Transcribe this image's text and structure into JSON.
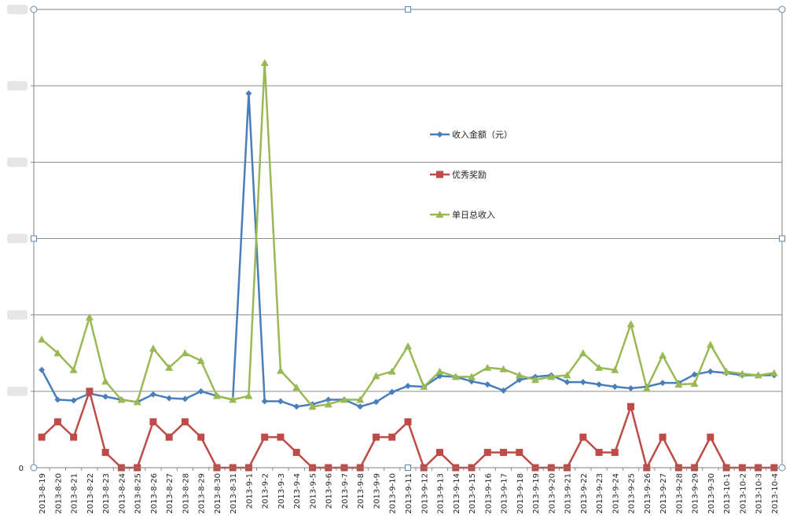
{
  "chart_data": {
    "type": "line",
    "title": "",
    "xlabel": "",
    "ylabel": "",
    "ylim": [
      0,
      60
    ],
    "y_tick_labels": [
      "0",
      "",
      "",
      "",
      "",
      "",
      ""
    ],
    "grid": true,
    "legend_position": "right-center",
    "categories": [
      "2013-8-19",
      "2013-8-20",
      "2013-8-21",
      "2013-8-22",
      "2013-8-23",
      "2013-8-24",
      "2013-8-25",
      "2013-8-26",
      "2013-8-27",
      "2013-8-28",
      "2013-8-29",
      "2013-8-30",
      "2013-8-31",
      "2013-9-1",
      "2013-9-2",
      "2013-9-3",
      "2013-9-4",
      "2013-9-5",
      "2013-9-6",
      "2013-9-7",
      "2013-9-8",
      "2013-9-9",
      "2013-9-10",
      "2013-9-11",
      "2013-9-12",
      "2013-9-13",
      "2013-9-14",
      "2013-9-15",
      "2013-9-16",
      "2013-9-17",
      "2013-9-18",
      "2013-9-19",
      "2013-9-20",
      "2013-9-21",
      "2013-9-22",
      "2013-9-23",
      "2013-9-24",
      "2013-9-25",
      "2013-9-26",
      "2013-9-27",
      "2013-9-28",
      "2013-9-29",
      "2013-9-30",
      "2013-10-1",
      "2013-10-2",
      "2013-10-3",
      "2013-10-4"
    ],
    "series": [
      {
        "name": "收入金额（元）",
        "color": "#4a7ebb",
        "marker": "diamond",
        "values": [
          12.8,
          8.9,
          8.8,
          9.7,
          9.3,
          8.9,
          8.6,
          9.6,
          9.1,
          9.0,
          10.0,
          9.4,
          8.9,
          49.0,
          8.7,
          8.7,
          8.0,
          8.3,
          8.9,
          8.9,
          8.0,
          8.6,
          9.9,
          10.7,
          10.6,
          12.0,
          11.9,
          11.3,
          10.9,
          10.1,
          11.5,
          11.9,
          12.1,
          11.2,
          11.2,
          10.9,
          10.6,
          10.4,
          10.6,
          11.1,
          11.1,
          12.2,
          12.6,
          12.4,
          12.1,
          12.1,
          12.1
        ]
      },
      {
        "name": "优秀奖励",
        "color": "#be4b48",
        "marker": "square",
        "values": [
          4,
          6,
          4,
          10,
          2,
          0,
          0,
          6,
          4,
          6,
          4,
          0,
          0,
          0,
          4,
          4,
          2,
          0,
          0,
          0,
          0,
          4,
          4,
          6,
          0,
          2,
          0,
          0,
          2,
          2,
          2,
          0,
          0,
          0,
          4,
          2,
          2,
          8,
          0,
          4,
          0,
          0,
          4,
          0,
          0,
          0,
          0
        ]
      },
      {
        "name": "单日总收入",
        "color": "#98b954",
        "marker": "triangle",
        "values": [
          16.8,
          15.0,
          12.8,
          19.7,
          11.3,
          8.9,
          8.6,
          15.6,
          13.1,
          15.0,
          14.0,
          9.4,
          8.9,
          9.4,
          53.0,
          12.7,
          10.5,
          8.0,
          8.3,
          8.9,
          8.9,
          12.0,
          12.6,
          15.9,
          10.6,
          12.6,
          11.9,
          11.9,
          13.1,
          12.9,
          12.1,
          11.5,
          11.9,
          12.1,
          15.0,
          13.1,
          12.8,
          18.8,
          10.4,
          14.7,
          10.9,
          11.0,
          16.1,
          12.6,
          12.3,
          12.1,
          12.4
        ]
      }
    ]
  }
}
